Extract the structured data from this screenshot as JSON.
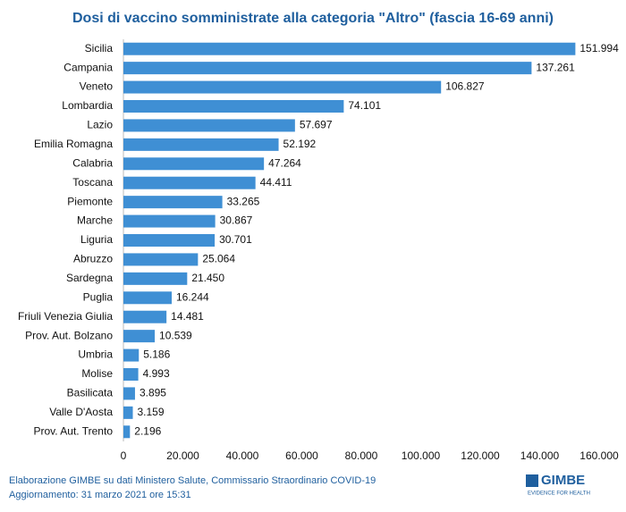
{
  "chart_data": {
    "type": "bar",
    "orientation": "horizontal",
    "title": "Dosi di vaccino somministrate alla categoria \"Altro\" (fascia 16-69 anni)",
    "categories": [
      "Sicilia",
      "Campania",
      "Veneto",
      "Lombardia",
      "Lazio",
      "Emilia Romagna",
      "Calabria",
      "Toscana",
      "Piemonte",
      "Marche",
      "Liguria",
      "Abruzzo",
      "Sardegna",
      "Puglia",
      "Friuli Venezia Giulia",
      "Prov. Aut. Bolzano",
      "Umbria",
      "Molise",
      "Basilicata",
      "Valle D'Aosta",
      "Prov. Aut. Trento"
    ],
    "values": [
      151994,
      137261,
      106827,
      74101,
      57697,
      52192,
      47264,
      44411,
      33265,
      30867,
      30701,
      25064,
      21450,
      16244,
      14481,
      10539,
      5186,
      4993,
      3895,
      3159,
      2196
    ],
    "value_labels": [
      "151.994",
      "137.261",
      "106.827",
      "74.101",
      "57.697",
      "52.192",
      "47.264",
      "44.411",
      "33.265",
      "30.867",
      "30.701",
      "25.064",
      "21.450",
      "16.244",
      "14.481",
      "10.539",
      "5.186",
      "4.993",
      "3.895",
      "3.159",
      "2.196"
    ],
    "color": "#3f8fd4",
    "xlim": [
      0,
      160000
    ],
    "xticks": [
      0,
      {
        "value": 20000,
        "label": "20.000"
      },
      {
        "value": 40000,
        "label": "40.000"
      },
      {
        "value": 60000,
        "label": "60.000"
      },
      {
        "value": 80000,
        "label": "80.000"
      },
      {
        "value": 100000,
        "label": "100.000"
      },
      {
        "value": 120000,
        "label": "120.000"
      },
      {
        "value": 140000,
        "label": "140.000"
      },
      {
        "value": 160000,
        "label": "160.000"
      }
    ],
    "grid": false
  },
  "footer": {
    "source": "Elaborazione GIMBE su dati Ministero Salute, Commissario Straordinario COVID-19",
    "updated": "Aggiornamento: 31 marzo 2021 ore 15:31",
    "logo": "GIMBE",
    "logo_tagline": "EVIDENCE FOR HEALTH"
  }
}
